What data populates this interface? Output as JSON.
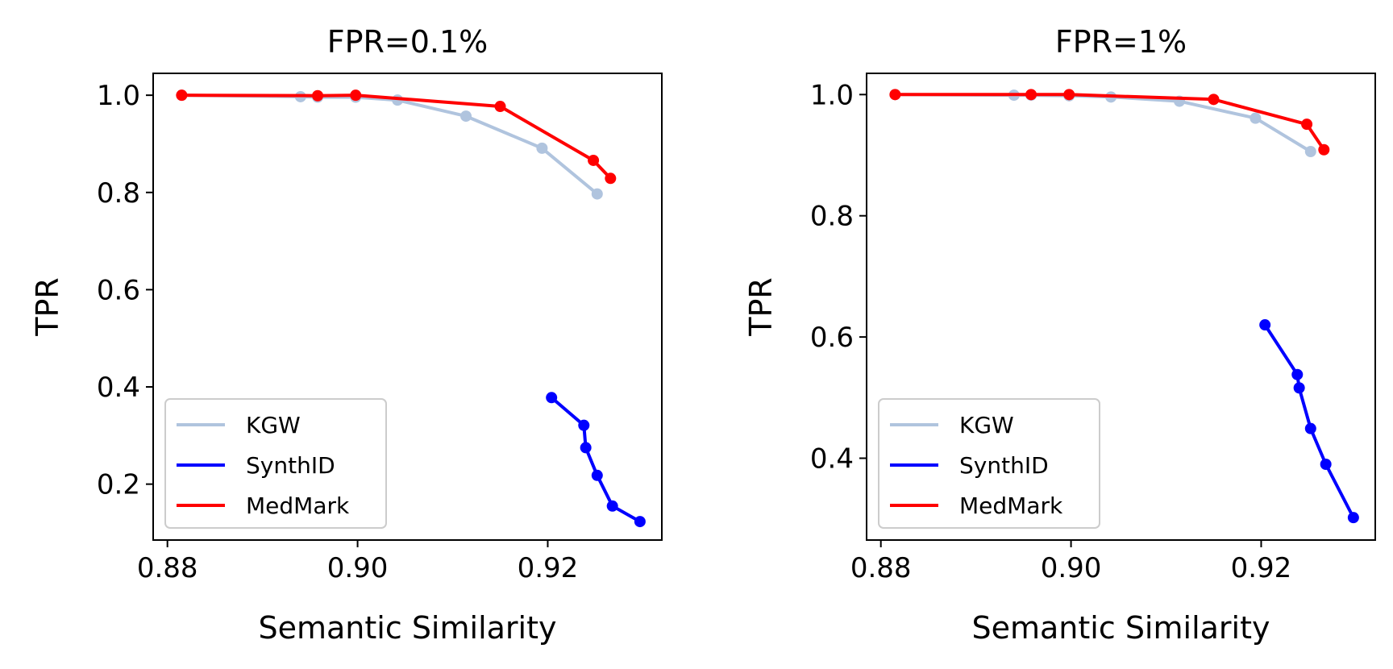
{
  "chart_data": [
    {
      "type": "line",
      "title": "FPR=0.1%",
      "xlabel": "Semantic Similarity",
      "ylabel": "TPR",
      "xlim": [
        0.8785,
        0.932
      ],
      "ylim": [
        0.085,
        1.045
      ],
      "xticks": [
        0.88,
        0.9,
        0.92
      ],
      "xtick_labels": [
        "0.88",
        "0.90",
        "0.92"
      ],
      "yticks": [
        0.2,
        0.4,
        0.6,
        0.8,
        1.0
      ],
      "ytick_labels": [
        "0.2",
        "0.4",
        "0.6",
        "0.8",
        "1.0"
      ],
      "grid": false,
      "legend": "lower-left",
      "series": [
        {
          "name": "KGW",
          "color": "#b0c4de",
          "x": [
            0.8815,
            0.894,
            0.8958,
            0.8998,
            0.9042,
            0.9114,
            0.9194,
            0.9252
          ],
          "y": [
            1.0,
            0.997,
            0.996,
            0.996,
            0.99,
            0.957,
            0.891,
            0.797
          ]
        },
        {
          "name": "SynthID",
          "color": "#0000ff",
          "x": [
            0.9204,
            0.9238,
            0.924,
            0.9252,
            0.9268,
            0.9297
          ],
          "y": [
            0.378,
            0.321,
            0.275,
            0.218,
            0.155,
            0.123
          ]
        },
        {
          "name": "MedMark",
          "color": "#ff0000",
          "x": [
            0.8815,
            0.8958,
            0.8998,
            0.915,
            0.9248,
            0.9266
          ],
          "y": [
            1.0,
            0.999,
            1.0,
            0.977,
            0.866,
            0.829
          ]
        }
      ]
    },
    {
      "type": "line",
      "title": "FPR=1%",
      "xlabel": "Semantic Similarity",
      "ylabel": "TPR",
      "xlim": [
        0.8785,
        0.932
      ],
      "ylim": [
        0.265,
        1.035
      ],
      "xticks": [
        0.88,
        0.9,
        0.92
      ],
      "xtick_labels": [
        "0.88",
        "0.90",
        "0.92"
      ],
      "yticks": [
        0.4,
        0.6,
        0.8,
        1.0
      ],
      "ytick_labels": [
        "0.4",
        "0.6",
        "0.8",
        "1.0"
      ],
      "grid": false,
      "legend": "lower-left",
      "series": [
        {
          "name": "KGW",
          "color": "#b0c4de",
          "x": [
            0.8815,
            0.894,
            0.8958,
            0.8998,
            0.9042,
            0.9114,
            0.9194,
            0.9252
          ],
          "y": [
            1.0,
            0.999,
            0.999,
            0.998,
            0.996,
            0.989,
            0.961,
            0.906
          ]
        },
        {
          "name": "SynthID",
          "color": "#0000ff",
          "x": [
            0.9204,
            0.9238,
            0.924,
            0.9252,
            0.9268,
            0.9297
          ],
          "y": [
            0.62,
            0.538,
            0.516,
            0.449,
            0.39,
            0.302
          ]
        },
        {
          "name": "MedMark",
          "color": "#ff0000",
          "x": [
            0.8815,
            0.8958,
            0.8998,
            0.915,
            0.9248,
            0.9266
          ],
          "y": [
            1.0,
            1.0,
            1.0,
            0.992,
            0.951,
            0.909
          ]
        }
      ]
    }
  ]
}
